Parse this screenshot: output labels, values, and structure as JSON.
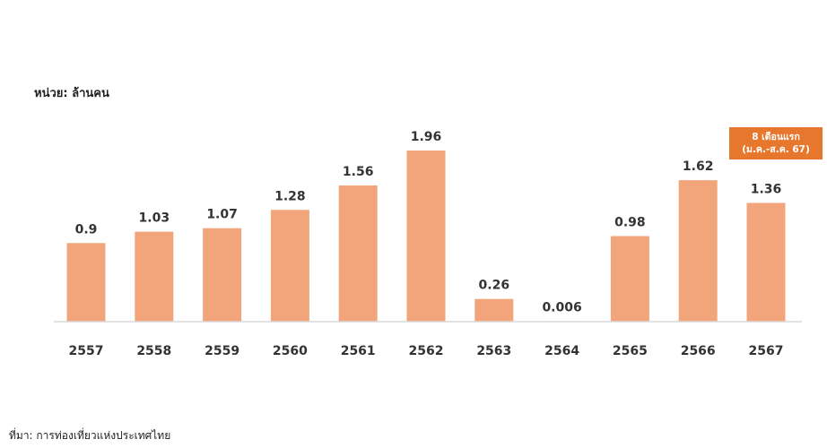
{
  "unit_label": "หน่วย: ล้านคน",
  "source_label": "ที่มา: การท่องเที่ยวแห่งประเทศไทย",
  "annotation": {
    "line1": "8 เดือนแรก",
    "line2": "(ม.ค.-ส.ค. 67)",
    "color": "#e8772e"
  },
  "colors": {
    "bar": "#f2a57b",
    "baseline": "#d9d9d9",
    "text": "#333333"
  },
  "chart_data": {
    "type": "bar",
    "categories": [
      "2557",
      "2558",
      "2559",
      "2560",
      "2561",
      "2562",
      "2563",
      "2564",
      "2565",
      "2566",
      "2567"
    ],
    "values": [
      0.9,
      1.03,
      1.07,
      1.28,
      1.56,
      1.96,
      0.26,
      0.006,
      0.98,
      1.62,
      1.36
    ],
    "value_labels": [
      "0.9",
      "1.03",
      "1.07",
      "1.28",
      "1.56",
      "1.96",
      "0.26",
      "0.006",
      "0.98",
      "1.62",
      "1.36"
    ],
    "ylim": [
      0,
      1.96
    ],
    "grid": false,
    "legend": "none"
  }
}
